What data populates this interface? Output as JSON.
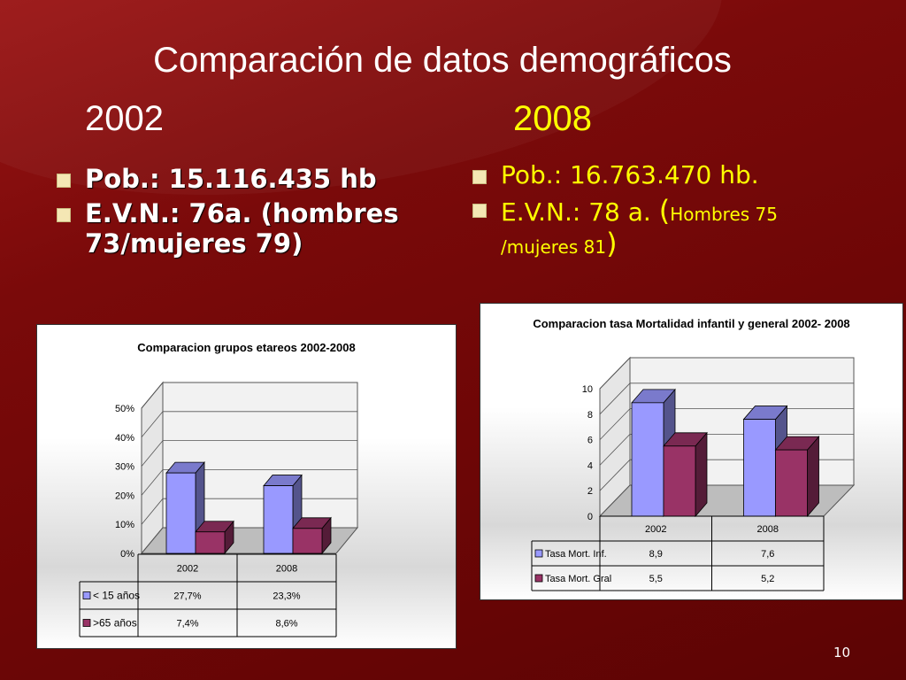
{
  "slide": {
    "title": "Comparación de datos demográficos",
    "year_left": "2002",
    "year_right": "2008",
    "left_bullets": [
      "Pob.: 15.116.435 hb",
      "E.V.N.:  76a. (hombres 73/mujeres 79)"
    ],
    "right_bullets": {
      "pob": "Pob.: 16.763.470 hb.",
      "evn_main": "E.V.N.:  78 a. ",
      "evn_open": "(",
      "evn_small": "Hombres 75 /mujeres 81",
      "evn_close": ")"
    },
    "page_number": "10"
  },
  "colors": {
    "series1": "#9999ff",
    "series2": "#993366",
    "slide_bg": "#7a0a0a"
  },
  "chart_data": [
    {
      "type": "bar",
      "title": "Comparacion grupos etareos 2002-2008",
      "categories": [
        "2002",
        "2008"
      ],
      "series": [
        {
          "name": "< 15 años",
          "values": [
            27.7,
            23.3
          ],
          "labels": [
            "27,7%",
            "23,3%"
          ]
        },
        {
          "name": ">65 años",
          "values": [
            7.4,
            8.6
          ],
          "labels": [
            "7,4%",
            "8,6%"
          ]
        }
      ],
      "yticks": [
        "0%",
        "10%",
        "20%",
        "30%",
        "40%",
        "50%"
      ],
      "ylim": [
        0,
        50
      ],
      "data_table": true,
      "style": "3d"
    },
    {
      "type": "bar",
      "title": "Comparacion tasa Mortalidad infantil y general 2002- 2008",
      "categories": [
        "2002",
        "2008"
      ],
      "series": [
        {
          "name": "Tasa Mort. Inf.",
          "values": [
            8.9,
            7.6
          ],
          "labels": [
            "8,9",
            "7,6"
          ]
        },
        {
          "name": "Tasa Mort. Gral",
          "values": [
            5.5,
            5.2
          ],
          "labels": [
            "5,5",
            "5,2"
          ]
        }
      ],
      "yticks": [
        "0",
        "2",
        "4",
        "6",
        "8",
        "10"
      ],
      "ylim": [
        0,
        10
      ],
      "data_table": true,
      "style": "3d"
    }
  ]
}
